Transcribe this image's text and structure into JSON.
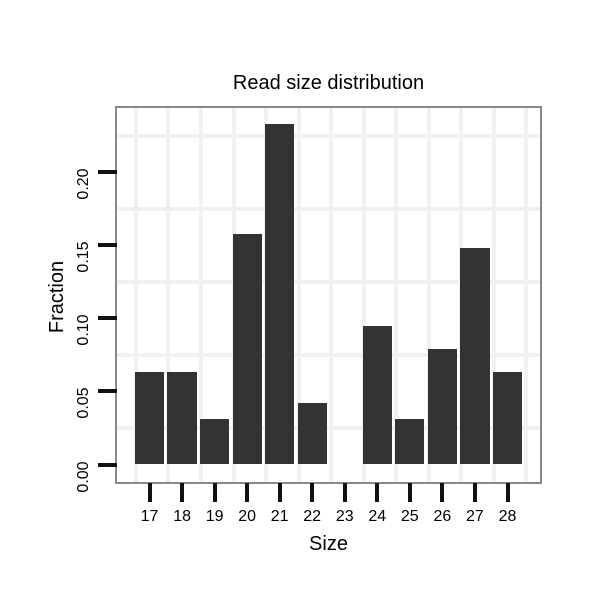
{
  "chart_data": {
    "type": "bar",
    "title": "Read size distribution",
    "xlabel": "Size",
    "ylabel": "Fraction",
    "categories": [
      17,
      18,
      19,
      20,
      21,
      22,
      23,
      24,
      25,
      26,
      27,
      28
    ],
    "values": [
      0.063,
      0.063,
      0.031,
      0.158,
      0.233,
      0.042,
      0,
      0.095,
      0.031,
      0.079,
      0.148,
      0.063
    ],
    "x_tick_labels": [
      "17",
      "18",
      "19",
      "20",
      "21",
      "22",
      "23",
      "24",
      "25",
      "26",
      "27",
      "28"
    ],
    "y_tick_labels": [
      "0.00",
      "0.05",
      "0.10",
      "0.15",
      "0.20"
    ],
    "y_tick_values": [
      0,
      0.05,
      0.1,
      0.15,
      0.2
    ],
    "xlim": [
      16,
      29
    ],
    "ylim": [
      -0.012,
      0.244
    ],
    "bar_width_units": 0.9,
    "legend": "none",
    "grid": {
      "on": true,
      "x_line_offset_units": 0.58,
      "y_line_values": [
        0.025,
        0.075,
        0.125,
        0.175,
        0.225
      ]
    },
    "colors": {
      "bar": "#333333",
      "panel_border": "#898989",
      "grid_line": "#f1f1f1",
      "tick": "#111111",
      "text": "#000000",
      "background": "#ffffff"
    }
  }
}
